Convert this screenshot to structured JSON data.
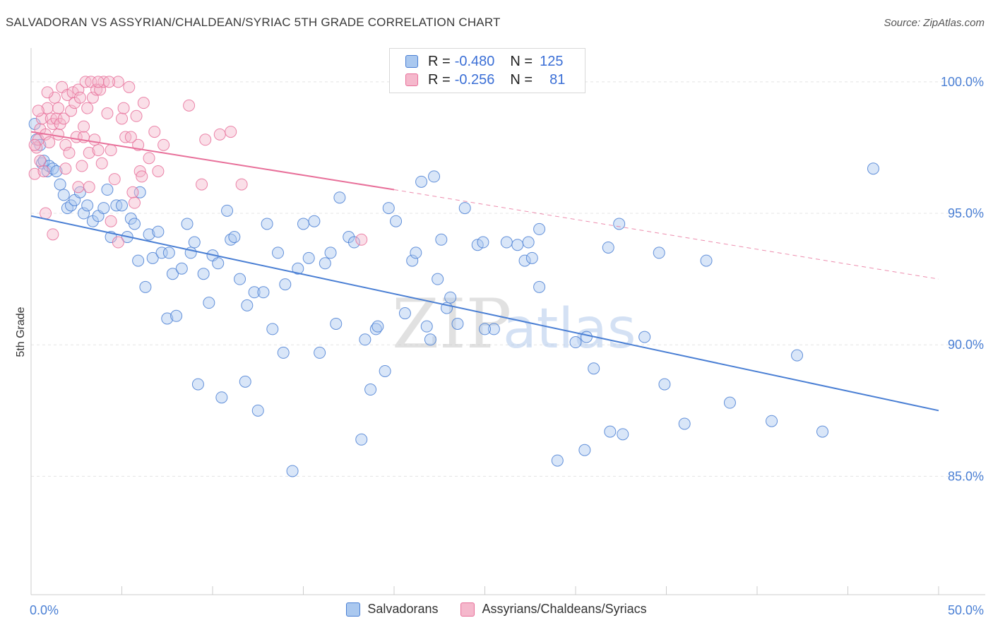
{
  "title": "SALVADORAN VS ASSYRIAN/CHALDEAN/SYRIAC 5TH GRADE CORRELATION CHART",
  "source": "Source: ZipAtlas.com",
  "watermark": {
    "zip": "ZIP",
    "atlas": "atlas"
  },
  "legend": {
    "r_label": "R =",
    "n_label": "N =",
    "rows": [
      {
        "r": "-0.480",
        "n": "125"
      },
      {
        "r": "-0.256",
        "n": "81"
      }
    ]
  },
  "chart_data": {
    "type": "scatter",
    "xlabel": "",
    "ylabel": "5th Grade",
    "xlim": [
      0,
      50
    ],
    "ylim": [
      80.5,
      101.5
    ],
    "x_tick_labels": [
      {
        "value": 0,
        "label": "0.0%"
      },
      {
        "value": 50,
        "label": "50.0%"
      }
    ],
    "y_tick_labels": [
      {
        "value": 100,
        "label": "100.0%"
      },
      {
        "value": 95,
        "label": "95.0%"
      },
      {
        "value": 90,
        "label": "90.0%"
      },
      {
        "value": 85,
        "label": "85.0%"
      }
    ],
    "grid": true,
    "colors": {
      "blue": "#4a7fd4",
      "blue_fill": "#aac8ef",
      "pink": "#e8709a",
      "pink_fill": "#f5b8cc"
    },
    "series": [
      {
        "name": "Salvadorans",
        "trend": {
          "x": [
            0,
            50
          ],
          "y": [
            94.9,
            87.5
          ]
        },
        "points": [
          [
            0.2,
            98.4
          ],
          [
            0.3,
            97.8
          ],
          [
            0.5,
            97.6
          ],
          [
            0.6,
            96.9
          ],
          [
            0.7,
            97.0
          ],
          [
            0.9,
            96.6
          ],
          [
            1.0,
            96.8
          ],
          [
            1.2,
            96.7
          ],
          [
            1.4,
            96.6
          ],
          [
            1.6,
            96.1
          ],
          [
            1.8,
            95.7
          ],
          [
            2.0,
            95.2
          ],
          [
            2.2,
            95.3
          ],
          [
            2.4,
            95.5
          ],
          [
            2.7,
            95.8
          ],
          [
            2.9,
            95.0
          ],
          [
            3.1,
            95.3
          ],
          [
            3.4,
            94.7
          ],
          [
            3.7,
            94.9
          ],
          [
            4.0,
            95.2
          ],
          [
            4.2,
            95.9
          ],
          [
            4.4,
            94.1
          ],
          [
            4.7,
            95.3
          ],
          [
            5.0,
            95.3
          ],
          [
            5.3,
            94.1
          ],
          [
            5.5,
            94.8
          ],
          [
            5.7,
            94.6
          ],
          [
            6.0,
            95.8
          ],
          [
            5.9,
            93.2
          ],
          [
            6.3,
            92.2
          ],
          [
            6.5,
            94.2
          ],
          [
            6.7,
            93.3
          ],
          [
            7.0,
            94.3
          ],
          [
            7.2,
            93.5
          ],
          [
            7.5,
            91.0
          ],
          [
            7.6,
            93.5
          ],
          [
            7.8,
            92.7
          ],
          [
            8.0,
            91.1
          ],
          [
            8.3,
            92.9
          ],
          [
            8.6,
            94.6
          ],
          [
            8.8,
            93.5
          ],
          [
            9.0,
            93.9
          ],
          [
            9.2,
            88.5
          ],
          [
            9.5,
            92.7
          ],
          [
            9.8,
            91.6
          ],
          [
            10.0,
            93.4
          ],
          [
            10.3,
            93.1
          ],
          [
            10.5,
            88.0
          ],
          [
            10.8,
            95.1
          ],
          [
            11.0,
            94.0
          ],
          [
            11.2,
            94.1
          ],
          [
            11.5,
            92.5
          ],
          [
            11.8,
            88.6
          ],
          [
            11.9,
            91.5
          ],
          [
            12.3,
            92.0
          ],
          [
            12.5,
            87.5
          ],
          [
            12.8,
            92.0
          ],
          [
            13.0,
            94.6
          ],
          [
            13.3,
            90.6
          ],
          [
            13.6,
            93.5
          ],
          [
            13.9,
            89.7
          ],
          [
            14.0,
            92.3
          ],
          [
            14.4,
            85.2
          ],
          [
            14.7,
            92.9
          ],
          [
            15.0,
            94.6
          ],
          [
            15.3,
            93.3
          ],
          [
            15.6,
            94.7
          ],
          [
            15.9,
            89.7
          ],
          [
            16.2,
            93.1
          ],
          [
            16.5,
            93.5
          ],
          [
            16.8,
            90.8
          ],
          [
            17.0,
            95.6
          ],
          [
            17.5,
            94.1
          ],
          [
            17.8,
            93.9
          ],
          [
            18.2,
            86.4
          ],
          [
            18.4,
            90.2
          ],
          [
            18.7,
            88.3
          ],
          [
            19.0,
            90.6
          ],
          [
            19.1,
            90.7
          ],
          [
            19.5,
            89.0
          ],
          [
            19.7,
            95.2
          ],
          [
            20.1,
            94.7
          ],
          [
            20.6,
            91.2
          ],
          [
            21.0,
            93.2
          ],
          [
            21.2,
            93.5
          ],
          [
            21.5,
            96.2
          ],
          [
            21.8,
            90.7
          ],
          [
            22.0,
            90.2
          ],
          [
            22.2,
            96.4
          ],
          [
            22.4,
            92.5
          ],
          [
            22.6,
            94.0
          ],
          [
            22.9,
            91.4
          ],
          [
            23.1,
            91.8
          ],
          [
            23.5,
            90.8
          ],
          [
            23.9,
            95.2
          ],
          [
            24.6,
            93.8
          ],
          [
            24.9,
            93.9
          ],
          [
            25.5,
            90.6
          ],
          [
            26.2,
            93.9
          ],
          [
            26.8,
            93.8
          ],
          [
            27.2,
            93.2
          ],
          [
            27.4,
            93.9
          ],
          [
            27.6,
            93.3
          ],
          [
            28.0,
            94.4
          ],
          [
            28.0,
            92.2
          ],
          [
            29.0,
            85.6
          ],
          [
            30.0,
            90.1
          ],
          [
            30.5,
            86.0
          ],
          [
            30.6,
            90.3
          ],
          [
            31.0,
            89.1
          ],
          [
            31.8,
            93.7
          ],
          [
            31.9,
            86.7
          ],
          [
            32.4,
            94.6
          ],
          [
            32.6,
            86.6
          ],
          [
            33.8,
            90.3
          ],
          [
            34.6,
            93.5
          ],
          [
            34.9,
            88.5
          ],
          [
            36.0,
            87.0
          ],
          [
            37.2,
            93.2
          ],
          [
            38.5,
            87.8
          ],
          [
            40.8,
            87.1
          ],
          [
            42.2,
            89.6
          ],
          [
            43.6,
            86.7
          ],
          [
            46.4,
            96.7
          ],
          [
            25.0,
            90.6
          ]
        ]
      },
      {
        "name": "Assyrians/Chaldeans/Syriacs",
        "trend": {
          "x": [
            0,
            20
          ],
          "y": [
            98.1,
            95.9
          ],
          "dashed_to": {
            "x": 50,
            "y": 92.5
          }
        },
        "points": [
          [
            0.2,
            96.5
          ],
          [
            0.3,
            97.5
          ],
          [
            0.4,
            97.8
          ],
          [
            0.5,
            98.2
          ],
          [
            0.6,
            98.6
          ],
          [
            0.7,
            96.6
          ],
          [
            0.8,
            98.0
          ],
          [
            0.9,
            99.0
          ],
          [
            1.0,
            97.7
          ],
          [
            1.1,
            98.6
          ],
          [
            1.2,
            98.4
          ],
          [
            1.3,
            99.4
          ],
          [
            1.4,
            98.6
          ],
          [
            1.5,
            98.0
          ],
          [
            1.6,
            98.4
          ],
          [
            1.7,
            99.8
          ],
          [
            1.8,
            98.6
          ],
          [
            1.9,
            97.6
          ],
          [
            2.0,
            99.5
          ],
          [
            2.1,
            97.3
          ],
          [
            2.2,
            98.9
          ],
          [
            2.3,
            99.6
          ],
          [
            2.4,
            99.2
          ],
          [
            2.5,
            97.9
          ],
          [
            2.6,
            99.7
          ],
          [
            2.7,
            99.4
          ],
          [
            2.8,
            96.8
          ],
          [
            2.9,
            97.9
          ],
          [
            3.0,
            100.0
          ],
          [
            3.1,
            99.0
          ],
          [
            3.2,
            97.3
          ],
          [
            3.3,
            100.0
          ],
          [
            3.4,
            99.4
          ],
          [
            3.5,
            97.8
          ],
          [
            3.6,
            99.7
          ],
          [
            3.7,
            97.4
          ],
          [
            3.8,
            99.7
          ],
          [
            3.9,
            96.9
          ],
          [
            4.0,
            100.0
          ],
          [
            4.2,
            98.8
          ],
          [
            4.4,
            97.4
          ],
          [
            4.6,
            96.3
          ],
          [
            4.8,
            100.0
          ],
          [
            5.0,
            98.6
          ],
          [
            5.2,
            97.9
          ],
          [
            5.4,
            99.8
          ],
          [
            5.6,
            95.8
          ],
          [
            5.7,
            95.4
          ],
          [
            5.8,
            98.7
          ],
          [
            5.9,
            97.6
          ],
          [
            6.0,
            96.6
          ],
          [
            6.2,
            99.2
          ],
          [
            6.5,
            97.1
          ],
          [
            6.8,
            98.1
          ],
          [
            7.0,
            96.6
          ],
          [
            8.7,
            99.1
          ],
          [
            9.4,
            96.1
          ],
          [
            9.6,
            97.8
          ],
          [
            10.4,
            98.0
          ],
          [
            11.0,
            98.1
          ],
          [
            11.6,
            96.1
          ],
          [
            18.2,
            94.0
          ],
          [
            0.5,
            97.0
          ],
          [
            1.2,
            94.2
          ],
          [
            0.8,
            95.0
          ],
          [
            2.6,
            96.0
          ],
          [
            4.4,
            94.7
          ],
          [
            4.8,
            93.9
          ],
          [
            6.1,
            96.4
          ],
          [
            7.3,
            97.6
          ],
          [
            0.2,
            97.6
          ],
          [
            0.9,
            99.6
          ],
          [
            1.5,
            99.0
          ],
          [
            2.9,
            98.3
          ],
          [
            3.7,
            100.0
          ],
          [
            4.3,
            100.0
          ],
          [
            5.1,
            99.0
          ],
          [
            0.4,
            98.9
          ],
          [
            1.9,
            96.7
          ],
          [
            3.2,
            96.0
          ],
          [
            5.5,
            97.9
          ]
        ]
      }
    ]
  },
  "bottom_legend": [
    {
      "label": "Salvadorans"
    },
    {
      "label": "Assyrians/Chaldeans/Syriacs"
    }
  ]
}
